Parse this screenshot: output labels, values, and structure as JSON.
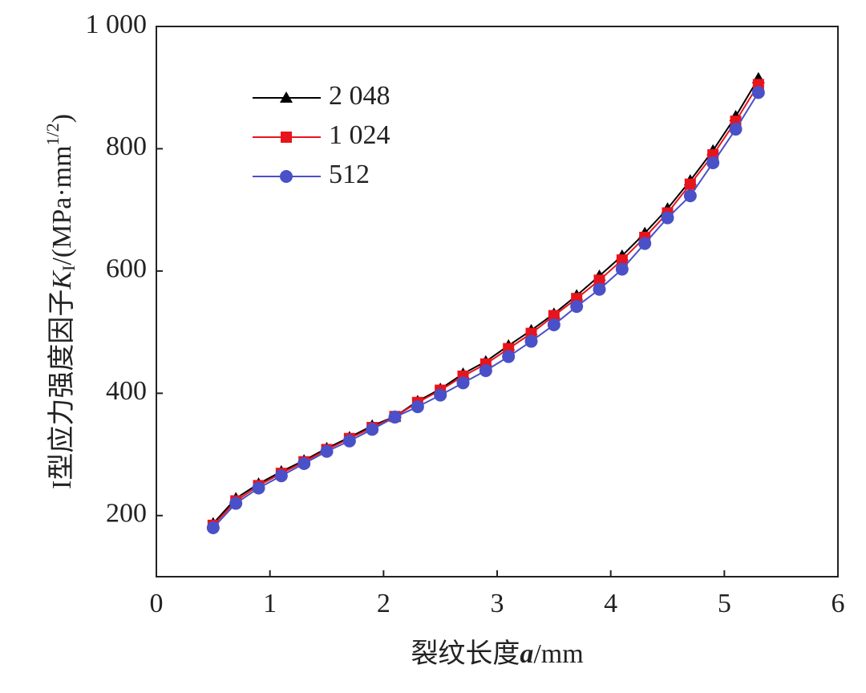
{
  "chart_data": {
    "type": "line",
    "xlabel": {
      "text": "裂纹长度",
      "var": "a",
      "unit": "/mm"
    },
    "ylabel": {
      "text": "I型应力强度因子",
      "var": "K",
      "sub": "I",
      "unit": "/(MPa·mm",
      "sup": "1/2",
      "close": ")"
    },
    "x": [
      0.5,
      0.7,
      0.9,
      1.1,
      1.3,
      1.5,
      1.7,
      1.9,
      2.1,
      2.3,
      2.5,
      2.7,
      2.9,
      3.1,
      3.3,
      3.5,
      3.7,
      3.9,
      4.1,
      4.3,
      4.5,
      4.7,
      4.9,
      5.1,
      5.3
    ],
    "series": [
      {
        "name": "2 048",
        "color": "#000000",
        "marker": "triangle",
        "values": [
          187,
          228,
          252,
          272,
          290,
          310,
          328,
          347,
          362,
          387,
          407,
          432,
          452,
          478,
          503,
          530,
          560,
          592,
          625,
          662,
          702,
          748,
          797,
          853,
          915
        ]
      },
      {
        "name": "1 024",
        "color": "#e8141c",
        "marker": "square",
        "values": [
          184,
          224,
          249,
          269,
          288,
          308,
          326,
          344,
          362,
          385,
          405,
          428,
          448,
          473,
          498,
          527,
          555,
          585,
          618,
          655,
          695,
          742,
          790,
          845,
          905
        ]
      },
      {
        "name": "512",
        "color": "#4a50c8",
        "marker": "circle",
        "values": [
          180,
          220,
          245,
          265,
          285,
          305,
          322,
          341,
          361,
          378,
          397,
          417,
          437,
          460,
          485,
          512,
          542,
          570,
          603,
          645,
          687,
          723,
          777,
          832,
          892
        ]
      }
    ],
    "xlim": [
      0,
      6
    ],
    "xticks": [
      0,
      1,
      2,
      3,
      4,
      5,
      6
    ],
    "ylim": [
      100,
      1000
    ],
    "yticks": [
      200,
      400,
      600,
      800,
      {
        "value": 1000,
        "label": "1 000"
      }
    ],
    "legend": "upper-left"
  }
}
